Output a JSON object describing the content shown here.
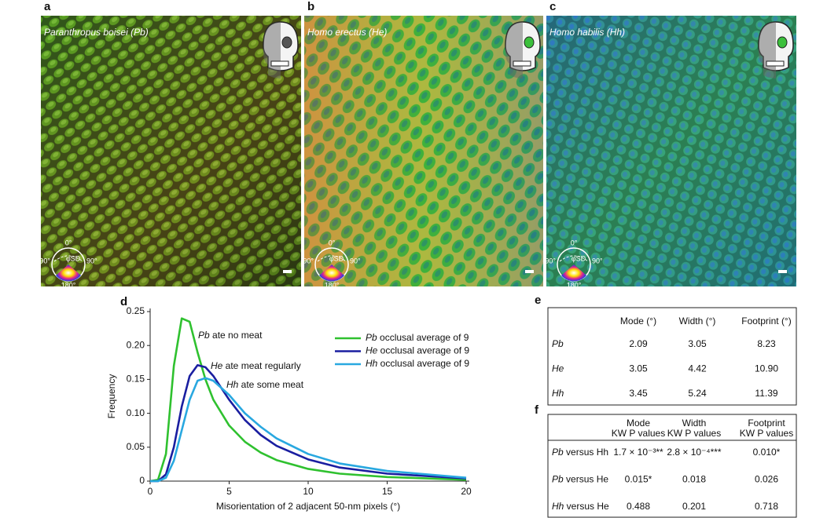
{
  "panels": [
    {
      "label": "a",
      "caption": "Paranthropus boisei (Pb)",
      "compass": {
        "top": "0°",
        "left": "-90°",
        "right": "90°",
        "bottom": "180°",
        "center": "φSD"
      }
    },
    {
      "label": "b",
      "caption": "Homo erectus (He)",
      "compass": {
        "top": "0°",
        "left": "-90°",
        "right": "90°",
        "bottom": "180°",
        "center": "φSD"
      }
    },
    {
      "label": "c",
      "caption": "Homo habilis (Hh)",
      "compass": {
        "top": "0°",
        "left": "-90°",
        "right": "90°",
        "bottom": "180°",
        "center": "φSD"
      }
    }
  ],
  "chart_data": {
    "type": "line",
    "label": "d",
    "xlabel": "Misorientation of 2 adjacent 50-nm pixels (°)",
    "ylabel": "Frequency",
    "x": [
      0,
      0.5,
      1,
      1.5,
      2,
      2.5,
      3,
      3.5,
      4,
      5,
      6,
      7,
      8,
      10,
      12,
      15,
      20
    ],
    "xlim": [
      0,
      20
    ],
    "ylim": [
      0,
      0.25
    ],
    "xticks": [
      0,
      5,
      10,
      15,
      20
    ],
    "yticks": [
      0,
      0.05,
      {
        "value": 0.1,
        "label": "0.10"
      },
      0.15,
      {
        "value": 0.2,
        "label": "0.20"
      },
      0.25
    ],
    "legend": "upper right",
    "series": [
      {
        "name": "Pb occlusal average of 9",
        "color": "#2fc12f",
        "values": [
          0,
          0.002,
          0.04,
          0.17,
          0.24,
          0.235,
          0.19,
          0.15,
          0.12,
          0.082,
          0.058,
          0.042,
          0.031,
          0.018,
          0.011,
          0.006,
          0.002
        ]
      },
      {
        "name": "He occlusal average of 9",
        "color": "#1a1ea0",
        "values": [
          0,
          0,
          0.01,
          0.05,
          0.11,
          0.155,
          0.171,
          0.168,
          0.155,
          0.12,
          0.09,
          0.068,
          0.052,
          0.032,
          0.02,
          0.011,
          0.004
        ]
      },
      {
        "name": "Hh occlusal average of 9",
        "color": "#29a8e0",
        "values": [
          0,
          0,
          0.005,
          0.03,
          0.075,
          0.12,
          0.148,
          0.152,
          0.148,
          0.127,
          0.1,
          0.08,
          0.063,
          0.04,
          0.026,
          0.015,
          0.005
        ]
      }
    ],
    "annotations": [
      "Pb ate no meat",
      "He ate meat regularly",
      "Hh ate some meat"
    ]
  },
  "table_e": {
    "label": "e",
    "columns": [
      "Mode (°)",
      "Width (°)",
      "Footprint (°)"
    ],
    "rows": [
      [
        "Pb",
        "2.09",
        "3.05",
        "8.23"
      ],
      [
        "He",
        "3.05",
        "4.42",
        "10.90"
      ],
      [
        "Hh",
        "3.45",
        "5.24",
        "11.39"
      ]
    ]
  },
  "table_f": {
    "label": "f",
    "columns": [
      [
        "Mode",
        "KW P values"
      ],
      [
        "Width",
        "KW P values"
      ],
      [
        "Footprint",
        "KW P values"
      ]
    ],
    "rows": [
      [
        "Pb versus Hh",
        "1.7 × 10⁻³**",
        "2.8 × 10⁻⁴***",
        "0.010*"
      ],
      [
        "Pb versus He",
        "0.015*",
        "0.018",
        "0.026"
      ],
      [
        "Hh versus He",
        "0.488",
        "0.201",
        "0.718"
      ]
    ]
  }
}
